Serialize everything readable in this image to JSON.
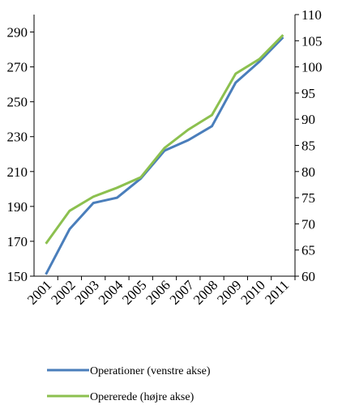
{
  "chart_data": {
    "type": "line",
    "categories": [
      "2001",
      "2002",
      "2003",
      "2004",
      "2005",
      "2006",
      "2007",
      "2008",
      "2009",
      "2010",
      "2011"
    ],
    "series": [
      {
        "name": "Operationer (venstre akse)",
        "color": "#4a7ebb",
        "values": [
          151,
          177,
          192,
          195,
          206,
          222,
          228,
          236,
          261,
          273,
          287
        ]
      },
      {
        "name": "Opererede (højre akse)",
        "color": "#8cc04f",
        "axis": "y2",
        "values": [
          66.2,
          72.5,
          75.2,
          76.9,
          78.9,
          84.5,
          88,
          90.8,
          98.7,
          101.5,
          106.1
        ]
      }
    ],
    "ylim": [
      150,
      300
    ],
    "yticks": [
      150,
      170,
      190,
      210,
      230,
      250,
      270,
      290
    ],
    "y2lim": [
      60,
      110
    ],
    "y2ticks": [
      60,
      65,
      70,
      75,
      80,
      85,
      90,
      95,
      100,
      105,
      110
    ],
    "grid": false
  }
}
